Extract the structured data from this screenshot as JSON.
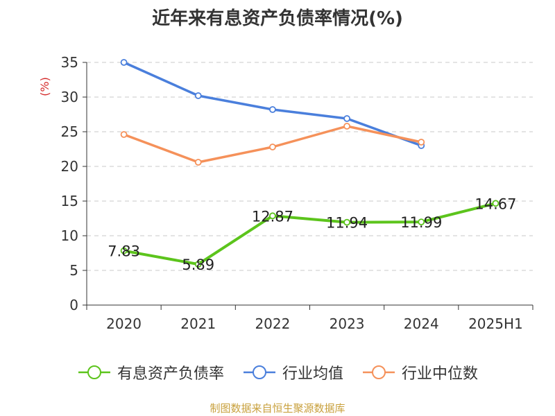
{
  "chart_data": {
    "type": "line",
    "title": "近年来有息资产负债率情况(%)",
    "ylabel": "(%)",
    "xlabel": "",
    "categories": [
      "2020",
      "2021",
      "2022",
      "2023",
      "2024",
      "2025H1"
    ],
    "ylim": [
      0,
      35
    ],
    "yticks": [
      0,
      5,
      10,
      15,
      20,
      25,
      30,
      35
    ],
    "grid": true,
    "legend_position": "bottom",
    "series": [
      {
        "name": "有息资产负债率",
        "color": "#5cc41c",
        "values": [
          7.83,
          5.89,
          12.87,
          11.94,
          11.99,
          14.67
        ],
        "labels": [
          "7.83",
          "5.89",
          "12.87",
          "11.94",
          "11.99",
          "14.67"
        ]
      },
      {
        "name": "行业均值",
        "color": "#4a7fdc",
        "values": [
          35.0,
          30.2,
          28.2,
          26.9,
          23.0,
          null
        ],
        "labels": []
      },
      {
        "name": "行业中位数",
        "color": "#f5915a",
        "values": [
          24.6,
          20.6,
          22.8,
          25.8,
          23.5,
          null
        ],
        "labels": []
      }
    ]
  },
  "source": "制图数据来自恒生聚源数据库"
}
